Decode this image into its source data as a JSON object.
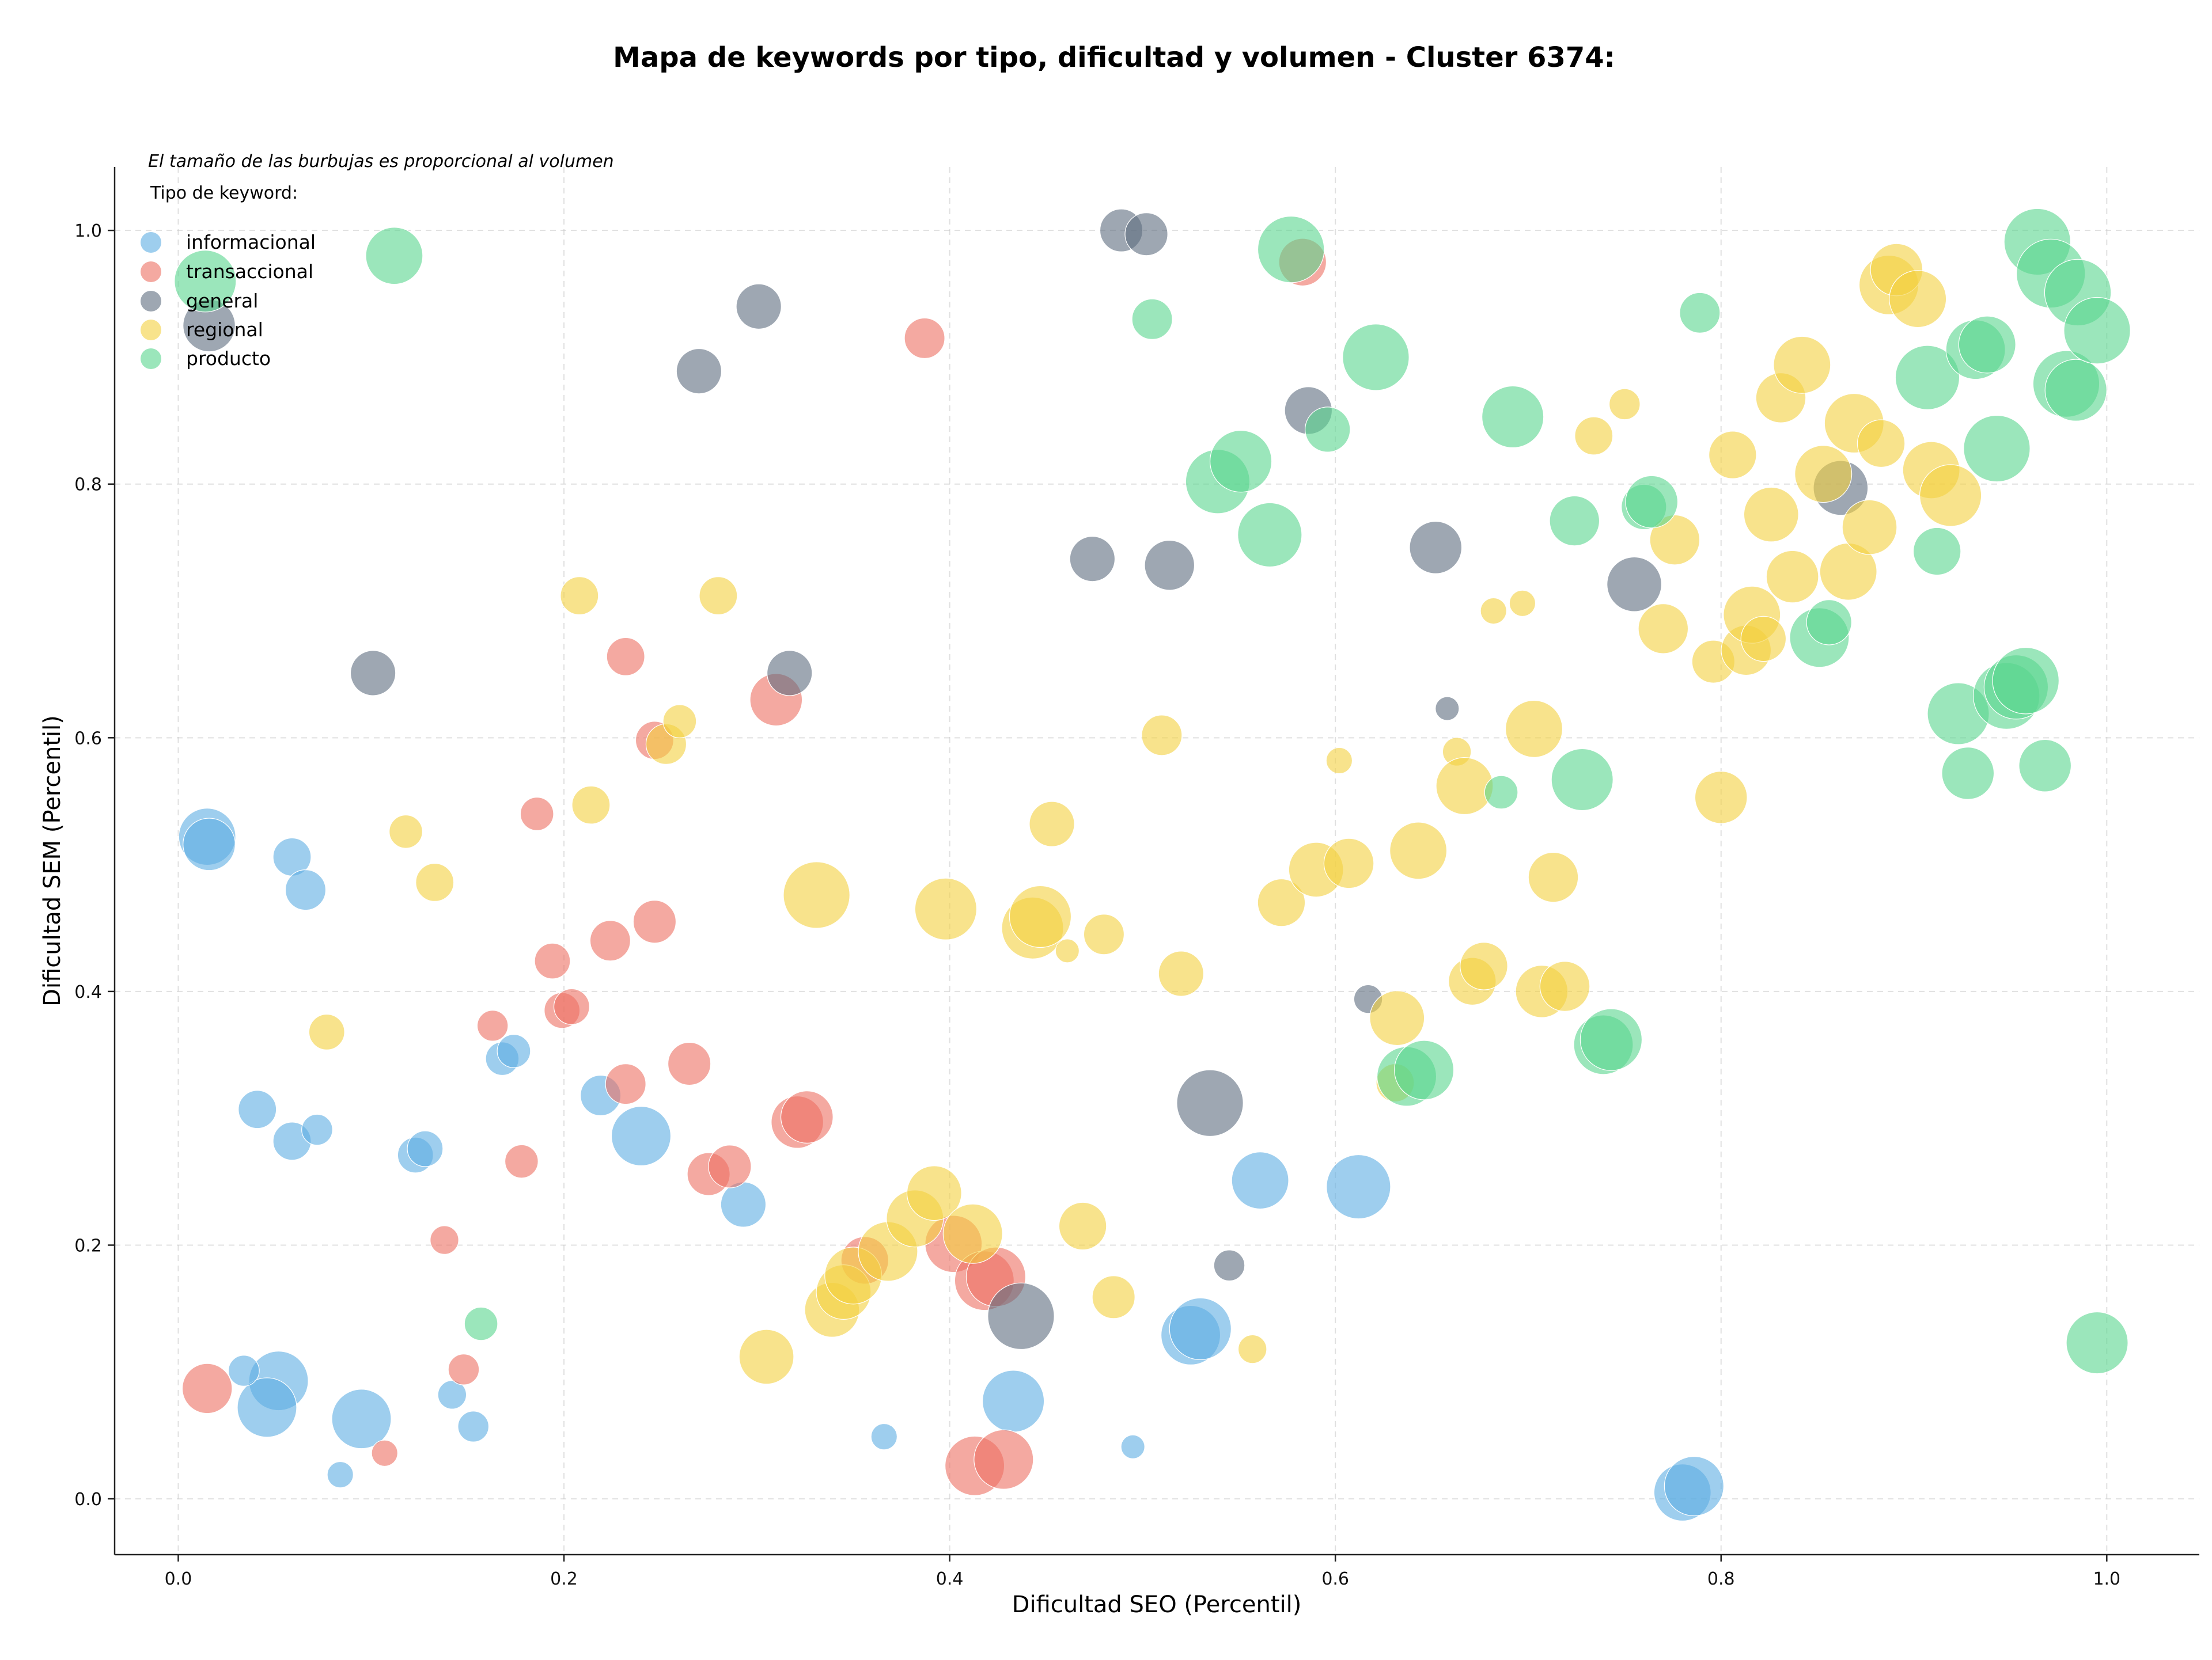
{
  "chart_data": {
    "type": "scatter",
    "title": "Mapa de keywords por tipo, dificultad y volumen - Cluster 6374:",
    "xlabel": "Dificultad SEO (Percentil)",
    "ylabel": "Dificultad SEM (Percentil)",
    "xlim": [
      -0.033,
      1.048
    ],
    "ylim": [
      -0.044,
      1.05
    ],
    "xticks": [
      "0.0",
      "0.2",
      "0.4",
      "0.6",
      "0.8",
      "1.0"
    ],
    "yticks": [
      "0.0",
      "0.2",
      "0.4",
      "0.6",
      "0.8",
      "1.0"
    ],
    "grid": true,
    "note": "El tamaño de las burbujas es proporcional al volumen",
    "legend_title": "Tipo de keyword:",
    "legend_position": "top-left",
    "series": [
      {
        "name": "informacional",
        "color": "#5dade2",
        "points": [
          [
            0.015,
            0.522,
            2.4
          ],
          [
            0.016,
            0.516,
            2.2
          ],
          [
            0.059,
            0.506,
            1.6
          ],
          [
            0.066,
            0.48,
            1.7
          ],
          [
            0.041,
            0.307,
            1.6
          ],
          [
            0.059,
            0.282,
            1.6
          ],
          [
            0.072,
            0.291,
            1.3
          ],
          [
            0.123,
            0.271,
            1.5
          ],
          [
            0.128,
            0.276,
            1.5
          ],
          [
            0.168,
            0.347,
            1.4
          ],
          [
            0.174,
            0.353,
            1.4
          ],
          [
            0.219,
            0.318,
            1.7
          ],
          [
            0.24,
            0.286,
            2.5
          ],
          [
            0.293,
            0.232,
            1.9
          ],
          [
            0.052,
            0.093,
            2.5
          ],
          [
            0.046,
            0.072,
            2.5
          ],
          [
            0.034,
            0.101,
            1.3
          ],
          [
            0.095,
            0.063,
            2.5
          ],
          [
            0.084,
            0.019,
            1.1
          ],
          [
            0.142,
            0.082,
            1.2
          ],
          [
            0.153,
            0.057,
            1.3
          ],
          [
            0.366,
            0.049,
            1.1
          ],
          [
            0.433,
            0.077,
            2.6
          ],
          [
            0.495,
            0.041,
            1.0
          ],
          [
            0.525,
            0.129,
            2.5
          ],
          [
            0.53,
            0.134,
            2.6
          ],
          [
            0.561,
            0.251,
            2.4
          ],
          [
            0.612,
            0.246,
            2.7
          ],
          [
            0.78,
            0.005,
            2.4
          ],
          [
            0.786,
            0.01,
            2.5
          ]
        ]
      },
      {
        "name": "transaccional",
        "color": "#ec7063",
        "points": [
          [
            0.015,
            0.087,
            2.1
          ],
          [
            0.107,
            0.036,
            1.1
          ],
          [
            0.148,
            0.102,
            1.3
          ],
          [
            0.138,
            0.204,
            1.2
          ],
          [
            0.163,
            0.373,
            1.3
          ],
          [
            0.178,
            0.266,
            1.4
          ],
          [
            0.186,
            0.54,
            1.4
          ],
          [
            0.194,
            0.424,
            1.5
          ],
          [
            0.199,
            0.385,
            1.5
          ],
          [
            0.204,
            0.388,
            1.5
          ],
          [
            0.224,
            0.44,
            1.7
          ],
          [
            0.232,
            0.664,
            1.6
          ],
          [
            0.232,
            0.327,
            1.7
          ],
          [
            0.247,
            0.455,
            1.8
          ],
          [
            0.247,
            0.598,
            1.6
          ],
          [
            0.265,
            0.343,
            1.8
          ],
          [
            0.275,
            0.256,
            1.8
          ],
          [
            0.286,
            0.262,
            1.8
          ],
          [
            0.31,
            0.63,
            2.2
          ],
          [
            0.321,
            0.297,
            2.2
          ],
          [
            0.326,
            0.301,
            2.2
          ],
          [
            0.356,
            0.188,
            2.0
          ],
          [
            0.387,
            0.915,
            1.7
          ],
          [
            0.402,
            0.201,
            2.4
          ],
          [
            0.418,
            0.172,
            2.5
          ],
          [
            0.424,
            0.175,
            2.5
          ],
          [
            0.413,
            0.026,
            2.5
          ],
          [
            0.428,
            0.031,
            2.5
          ],
          [
            0.583,
            0.975,
            2.0
          ]
        ]
      },
      {
        "name": "general",
        "color": "#5d6d7e",
        "points": [
          [
            0.016,
            0.925,
            2.2
          ],
          [
            0.101,
            0.651,
            1.9
          ],
          [
            0.27,
            0.889,
            1.9
          ],
          [
            0.301,
            0.94,
            1.9
          ],
          [
            0.317,
            0.651,
            1.9
          ],
          [
            0.437,
            0.144,
            2.8
          ],
          [
            0.474,
            0.741,
            1.9
          ],
          [
            0.489,
            1.0,
            1.8
          ],
          [
            0.502,
            0.997,
            1.8
          ],
          [
            0.514,
            0.736,
            2.1
          ],
          [
            0.535,
            0.312,
            2.8
          ],
          [
            0.545,
            0.184,
            1.3
          ],
          [
            0.586,
            0.858,
            2.0
          ],
          [
            0.617,
            0.394,
            1.2
          ],
          [
            0.652,
            0.75,
            2.2
          ],
          [
            0.658,
            0.623,
            1.0
          ],
          [
            0.755,
            0.721,
            2.3
          ],
          [
            0.862,
            0.797,
            2.3
          ]
        ]
      },
      {
        "name": "regional",
        "color": "#f4d03f",
        "points": [
          [
            0.077,
            0.368,
            1.5
          ],
          [
            0.118,
            0.526,
            1.4
          ],
          [
            0.133,
            0.486,
            1.6
          ],
          [
            0.208,
            0.712,
            1.6
          ],
          [
            0.214,
            0.547,
            1.6
          ],
          [
            0.253,
            0.595,
            1.7
          ],
          [
            0.26,
            0.613,
            1.4
          ],
          [
            0.28,
            0.712,
            1.6
          ],
          [
            0.305,
            0.112,
            2.3
          ],
          [
            0.331,
            0.476,
            2.8
          ],
          [
            0.339,
            0.149,
            2.3
          ],
          [
            0.345,
            0.163,
            2.3
          ],
          [
            0.35,
            0.176,
            2.4
          ],
          [
            0.368,
            0.195,
            2.5
          ],
          [
            0.382,
            0.221,
            2.4
          ],
          [
            0.392,
            0.241,
            2.3
          ],
          [
            0.398,
            0.465,
            2.6
          ],
          [
            0.412,
            0.209,
            2.5
          ],
          [
            0.443,
            0.45,
            2.6
          ],
          [
            0.447,
            0.459,
            2.6
          ],
          [
            0.453,
            0.532,
            1.9
          ],
          [
            0.461,
            0.432,
            1.0
          ],
          [
            0.48,
            0.445,
            1.7
          ],
          [
            0.469,
            0.215,
            2.0
          ],
          [
            0.485,
            0.159,
            1.8
          ],
          [
            0.51,
            0.602,
            1.7
          ],
          [
            0.52,
            0.414,
            1.9
          ],
          [
            0.557,
            0.118,
            1.2
          ],
          [
            0.572,
            0.47,
            2.0
          ],
          [
            0.59,
            0.496,
            2.3
          ],
          [
            0.602,
            0.582,
            1.1
          ],
          [
            0.607,
            0.501,
            2.1
          ],
          [
            0.631,
            0.328,
            1.6
          ],
          [
            0.632,
            0.379,
            2.3
          ],
          [
            0.643,
            0.511,
            2.4
          ],
          [
            0.663,
            0.589,
            1.2
          ],
          [
            0.667,
            0.562,
            2.4
          ],
          [
            0.671,
            0.408,
            2.0
          ],
          [
            0.677,
            0.42,
            2.0
          ],
          [
            0.682,
            0.7,
            1.1
          ],
          [
            0.697,
            0.706,
            1.1
          ],
          [
            0.703,
            0.607,
            2.4
          ],
          [
            0.707,
            0.4,
            2.2
          ],
          [
            0.719,
            0.404,
            2.1
          ],
          [
            0.713,
            0.49,
            2.1
          ],
          [
            0.734,
            0.838,
            1.6
          ],
          [
            0.75,
            0.863,
            1.3
          ],
          [
            0.77,
            0.686,
            2.1
          ],
          [
            0.776,
            0.756,
            2.1
          ],
          [
            0.796,
            0.66,
            1.8
          ],
          [
            0.8,
            0.553,
            2.2
          ],
          [
            0.806,
            0.823,
            2.0
          ],
          [
            0.813,
            0.669,
            2.1
          ],
          [
            0.816,
            0.697,
            2.4
          ],
          [
            0.822,
            0.678,
            1.9
          ],
          [
            0.826,
            0.776,
            2.3
          ],
          [
            0.831,
            0.868,
            2.1
          ],
          [
            0.837,
            0.727,
            2.2
          ],
          [
            0.842,
            0.894,
            2.4
          ],
          [
            0.853,
            0.808,
            2.4
          ],
          [
            0.866,
            0.731,
            2.4
          ],
          [
            0.869,
            0.848,
            2.5
          ],
          [
            0.877,
            0.766,
            2.3
          ],
          [
            0.883,
            0.832,
            2.0
          ],
          [
            0.887,
            0.957,
            2.5
          ],
          [
            0.891,
            0.969,
            2.2
          ],
          [
            0.902,
            0.946,
            2.4
          ],
          [
            0.909,
            0.811,
            2.4
          ],
          [
            0.919,
            0.791,
            2.6
          ]
        ]
      },
      {
        "name": "producto",
        "color": "#58d68d",
        "points": [
          [
            0.014,
            0.96,
            2.6
          ],
          [
            0.112,
            0.98,
            2.4
          ],
          [
            0.157,
            0.138,
            1.4
          ],
          [
            0.505,
            0.93,
            1.7
          ],
          [
            0.539,
            0.802,
            2.7
          ],
          [
            0.551,
            0.818,
            2.6
          ],
          [
            0.566,
            0.76,
            2.7
          ],
          [
            0.577,
            0.985,
            2.8
          ],
          [
            0.596,
            0.843,
            1.9
          ],
          [
            0.621,
            0.9,
            2.8
          ],
          [
            0.637,
            0.333,
            2.5
          ],
          [
            0.646,
            0.338,
            2.5
          ],
          [
            0.686,
            0.557,
            1.4
          ],
          [
            0.692,
            0.853,
            2.6
          ],
          [
            0.724,
            0.771,
            2.1
          ],
          [
            0.728,
            0.567,
            2.6
          ],
          [
            0.739,
            0.358,
            2.5
          ],
          [
            0.743,
            0.362,
            2.6
          ],
          [
            0.76,
            0.782,
            1.9
          ],
          [
            0.764,
            0.786,
            2.2
          ],
          [
            0.789,
            0.935,
            1.7
          ],
          [
            0.851,
            0.679,
            2.5
          ],
          [
            0.856,
            0.691,
            1.9
          ],
          [
            0.907,
            0.884,
            2.7
          ],
          [
            0.912,
            0.747,
            2.0
          ],
          [
            0.923,
            0.619,
            2.6
          ],
          [
            0.928,
            0.572,
            2.2
          ],
          [
            0.932,
            0.906,
            2.5
          ],
          [
            0.938,
            0.91,
            2.4
          ],
          [
            0.943,
            0.828,
            2.8
          ],
          [
            0.948,
            0.633,
            2.8
          ],
          [
            0.953,
            0.64,
            2.7
          ],
          [
            0.958,
            0.645,
            2.8
          ],
          [
            0.964,
            0.991,
            2.8
          ],
          [
            0.968,
            0.578,
            2.2
          ],
          [
            0.971,
            0.966,
            2.9
          ],
          [
            0.979,
            0.879,
            2.8
          ],
          [
            0.984,
            0.874,
            2.6
          ],
          [
            0.985,
            0.951,
            2.8
          ],
          [
            0.995,
            0.921,
            2.8
          ],
          [
            0.995,
            0.123,
            2.6
          ]
        ]
      }
    ]
  }
}
